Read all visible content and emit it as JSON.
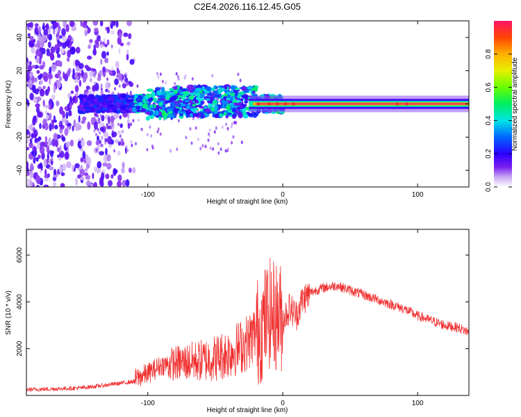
{
  "title": "C2E4.2026.116.12.45.G05",
  "chart_data": [
    {
      "type": "heatmap",
      "xlabel": "Height of straight line (km)",
      "ylabel": "Frequency (Hz)",
      "xlim": [
        -190,
        138
      ],
      "ylim": [
        -50,
        50
      ],
      "xticks": [
        -100,
        0,
        100
      ],
      "xtick_labels": [
        "-100",
        "0",
        "100"
      ],
      "yticks": [
        -40,
        -20,
        0,
        20,
        40
      ],
      "ytick_labels": [
        "-40",
        "-20",
        "0",
        "20",
        "40"
      ],
      "colorbar": {
        "label": "Normalized spectral amplitude",
        "range": [
          0,
          1
        ],
        "ticks": [
          0.0,
          0.2,
          0.4,
          0.6,
          0.8
        ],
        "tick_labels": [
          "0.0",
          "0.2",
          "0.4",
          "0.6",
          "0.8"
        ]
      },
      "ridge": {
        "frequency_hz": 0,
        "dense_start_km": -145,
        "strong_start_km": -20,
        "peak_amplitude": 1.0
      }
    },
    {
      "type": "line",
      "xlabel": "Height of straight line (km)",
      "ylabel": "SNR (10 * v/v)",
      "xlim": [
        -190,
        138
      ],
      "ylim": [
        0,
        7100
      ],
      "xticks": [
        -100,
        0,
        100
      ],
      "xtick_labels": [
        "-100",
        "0",
        "100"
      ],
      "yticks": [
        2000,
        4000,
        6000
      ],
      "ytick_labels": [
        "2000",
        "4000",
        "6000"
      ],
      "color": "#f03030",
      "series": [
        {
          "name": "SNR",
          "x": [
            -190,
            -170,
            -150,
            -130,
            -110,
            -100,
            -90,
            -80,
            -70,
            -60,
            -50,
            -40,
            -30,
            -25,
            -20,
            -15,
            -10,
            -5,
            0,
            5,
            10,
            15,
            20,
            30,
            40,
            50,
            60,
            70,
            80,
            90,
            100,
            110,
            120,
            130,
            138
          ],
          "y": [
            250,
            280,
            320,
            450,
            600,
            850,
            1200,
            1300,
            1350,
            1400,
            1500,
            1700,
            2000,
            2200,
            2600,
            3000,
            3500,
            3400,
            3300,
            3800,
            3500,
            4200,
            4400,
            4600,
            4700,
            4500,
            4300,
            4100,
            3900,
            3700,
            3400,
            3200,
            3000,
            2900,
            2700
          ]
        }
      ]
    }
  ]
}
